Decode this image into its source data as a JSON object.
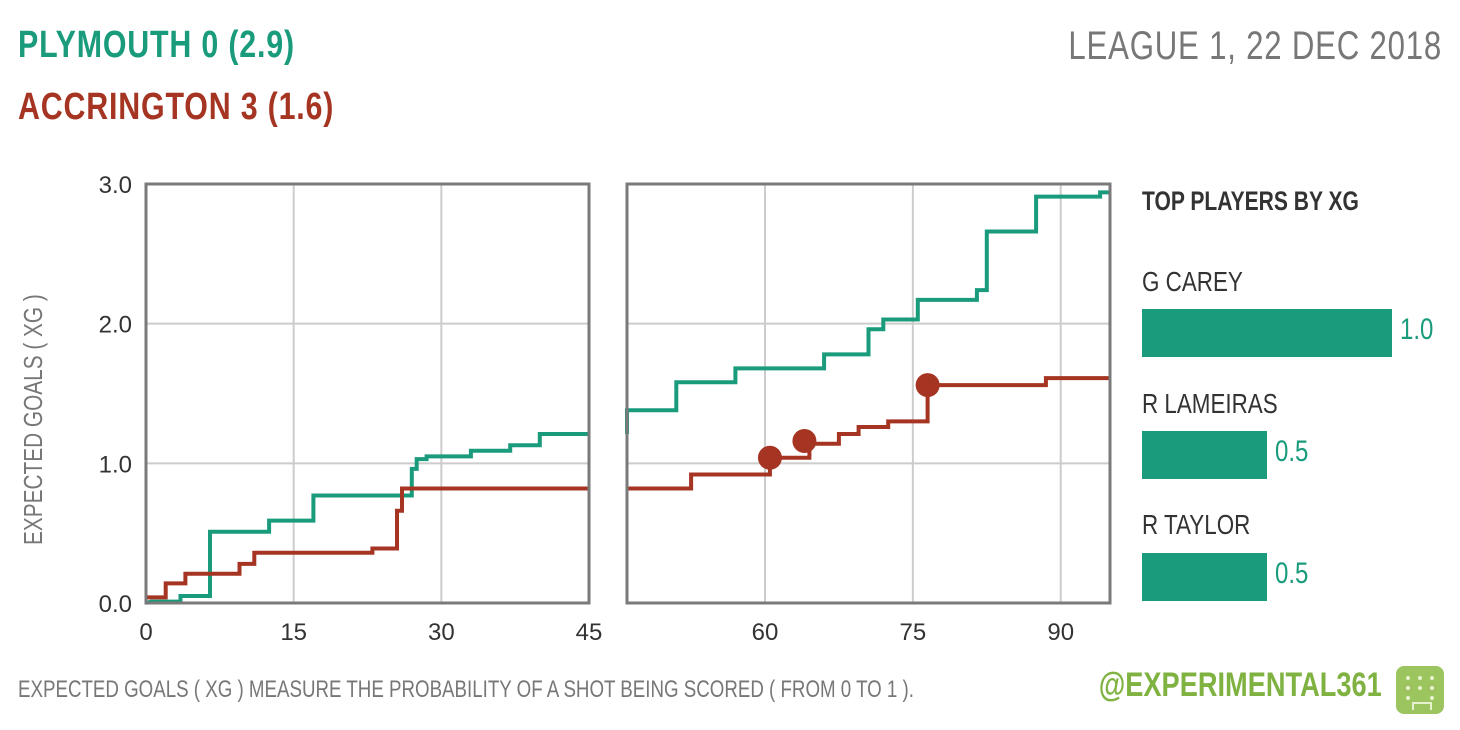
{
  "header": {
    "home_text": "PLYMOUTH 0  (2.9)",
    "away_text": "ACCRINGTON 3  (1.6)",
    "league_date": "LEAGUE 1, 22 DEC 2018"
  },
  "colors": {
    "home": "#1a9b7c",
    "away": "#a53522",
    "grid": "#cccccc",
    "frame": "#7a7a7a",
    "text_muted": "#777777",
    "brand": "#7fb241"
  },
  "chart_data": {
    "type": "line",
    "ylabel": "EXPECTED GOALS ( XG )",
    "ylim": [
      0,
      3
    ],
    "y_ticks": [
      "0.0",
      "1.0",
      "2.0",
      "3.0"
    ],
    "panels": [
      {
        "x_range": [
          0,
          45
        ],
        "x_ticks": [
          "0",
          "15",
          "30",
          "45"
        ]
      },
      {
        "x_range": [
          46,
          95
        ],
        "x_ticks": [
          "60",
          "75",
          "90"
        ]
      }
    ],
    "series": [
      {
        "name": "PLYMOUTH",
        "points": [
          [
            0,
            0
          ],
          [
            0.5,
            0.01
          ],
          [
            3.5,
            0.01
          ],
          [
            3.5,
            0.05
          ],
          [
            6.5,
            0.05
          ],
          [
            6.5,
            0.51
          ],
          [
            12.5,
            0.51
          ],
          [
            12.5,
            0.59
          ],
          [
            17,
            0.59
          ],
          [
            17,
            0.77
          ],
          [
            27,
            0.77
          ],
          [
            27,
            0.96
          ],
          [
            27.5,
            0.96
          ],
          [
            27.5,
            1.03
          ],
          [
            28.5,
            1.03
          ],
          [
            28.5,
            1.05
          ],
          [
            33,
            1.05
          ],
          [
            33,
            1.09
          ],
          [
            37,
            1.09
          ],
          [
            37,
            1.13
          ],
          [
            40,
            1.13
          ],
          [
            40,
            1.21
          ],
          [
            45,
            1.21
          ],
          [
            46,
            1.21
          ],
          [
            46,
            1.38
          ],
          [
            51,
            1.38
          ],
          [
            51,
            1.58
          ],
          [
            57,
            1.58
          ],
          [
            57,
            1.68
          ],
          [
            66,
            1.68
          ],
          [
            66,
            1.78
          ],
          [
            70.5,
            1.78
          ],
          [
            70.5,
            1.96
          ],
          [
            72,
            1.96
          ],
          [
            72,
            2.03
          ],
          [
            75.5,
            2.03
          ],
          [
            75.5,
            2.17
          ],
          [
            81.5,
            2.17
          ],
          [
            81.5,
            2.24
          ],
          [
            82.5,
            2.24
          ],
          [
            82.5,
            2.66
          ],
          [
            87.5,
            2.66
          ],
          [
            87.5,
            2.91
          ],
          [
            94,
            2.91
          ],
          [
            94,
            2.94
          ],
          [
            95,
            2.94
          ]
        ]
      },
      {
        "name": "ACCRINGTON",
        "points": [
          [
            0,
            0.04
          ],
          [
            2,
            0.04
          ],
          [
            2,
            0.14
          ],
          [
            4,
            0.14
          ],
          [
            4,
            0.21
          ],
          [
            9.5,
            0.21
          ],
          [
            9.5,
            0.28
          ],
          [
            11,
            0.28
          ],
          [
            11,
            0.36
          ],
          [
            23,
            0.36
          ],
          [
            23,
            0.39
          ],
          [
            25.5,
            0.39
          ],
          [
            25.5,
            0.66
          ],
          [
            26,
            0.66
          ],
          [
            26,
            0.82
          ],
          [
            45,
            0.82
          ],
          [
            46,
            0.82
          ],
          [
            46,
            0.82
          ],
          [
            52.5,
            0.82
          ],
          [
            52.5,
            0.92
          ],
          [
            60.5,
            0.92
          ],
          [
            60.5,
            1.04
          ],
          [
            64.5,
            1.04
          ],
          [
            64.5,
            1.14
          ],
          [
            67.5,
            1.14
          ],
          [
            67.5,
            1.21
          ],
          [
            69.5,
            1.21
          ],
          [
            69.5,
            1.26
          ],
          [
            72.5,
            1.26
          ],
          [
            72.5,
            1.3
          ],
          [
            76.5,
            1.3
          ],
          [
            76.5,
            1.56
          ],
          [
            88.5,
            1.56
          ],
          [
            88.5,
            1.61
          ],
          [
            95,
            1.61
          ]
        ],
        "goals": [
          [
            60.5,
            1.04
          ],
          [
            64,
            1.16
          ],
          [
            76.5,
            1.56
          ]
        ]
      }
    ]
  },
  "sidebar": {
    "title": "TOP PLAYERS BY XG",
    "players": [
      {
        "name": "G CAREY",
        "xg": 1.0,
        "label": "1.0"
      },
      {
        "name": "R LAMEIRAS",
        "xg": 0.5,
        "label": "0.5"
      },
      {
        "name": "R TAYLOR",
        "xg": 0.5,
        "label": "0.5"
      }
    ]
  },
  "footer": {
    "note": "EXPECTED GOALS ( XG ) MEASURE THE PROBABILITY  OF A SHOT BEING SCORED ( FROM 0 TO 1 ).",
    "handle": "@EXPERIMENTAL361",
    "logo_icon": "football-pitch-icon"
  }
}
